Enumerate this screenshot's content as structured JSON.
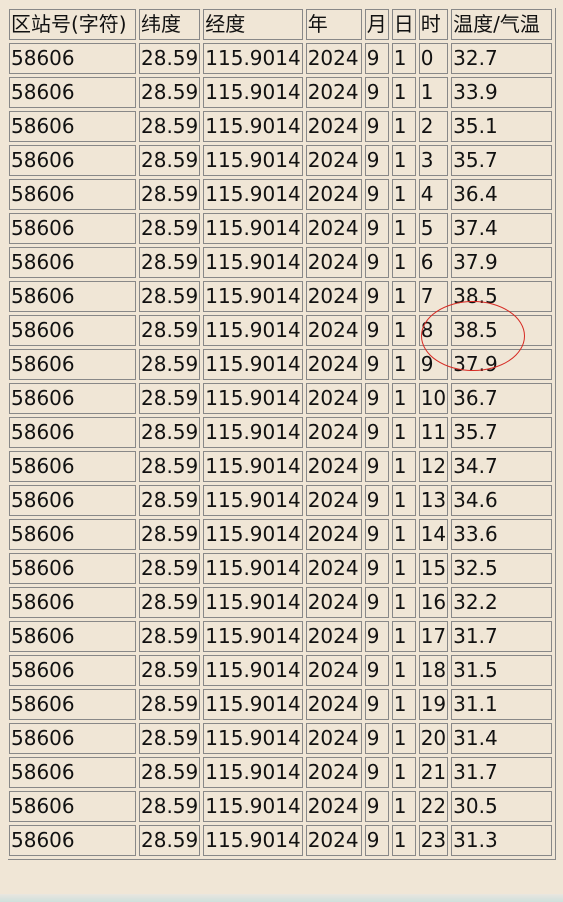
{
  "columns": [
    "区站号(字符)",
    "纬度",
    "经度",
    "年",
    "月",
    "日",
    "时",
    "温度/气温"
  ],
  "rows": [
    [
      "58606",
      "28.59",
      "115.9014",
      "2024",
      "9",
      "1",
      "0",
      "32.7"
    ],
    [
      "58606",
      "28.59",
      "115.9014",
      "2024",
      "9",
      "1",
      "1",
      "33.9"
    ],
    [
      "58606",
      "28.59",
      "115.9014",
      "2024",
      "9",
      "1",
      "2",
      "35.1"
    ],
    [
      "58606",
      "28.59",
      "115.9014",
      "2024",
      "9",
      "1",
      "3",
      "35.7"
    ],
    [
      "58606",
      "28.59",
      "115.9014",
      "2024",
      "9",
      "1",
      "4",
      "36.4"
    ],
    [
      "58606",
      "28.59",
      "115.9014",
      "2024",
      "9",
      "1",
      "5",
      "37.4"
    ],
    [
      "58606",
      "28.59",
      "115.9014",
      "2024",
      "9",
      "1",
      "6",
      "37.9"
    ],
    [
      "58606",
      "28.59",
      "115.9014",
      "2024",
      "9",
      "1",
      "7",
      "38.5"
    ],
    [
      "58606",
      "28.59",
      "115.9014",
      "2024",
      "9",
      "1",
      "8",
      "38.5"
    ],
    [
      "58606",
      "28.59",
      "115.9014",
      "2024",
      "9",
      "1",
      "9",
      "37.9"
    ],
    [
      "58606",
      "28.59",
      "115.9014",
      "2024",
      "9",
      "1",
      "10",
      "36.7"
    ],
    [
      "58606",
      "28.59",
      "115.9014",
      "2024",
      "9",
      "1",
      "11",
      "35.7"
    ],
    [
      "58606",
      "28.59",
      "115.9014",
      "2024",
      "9",
      "1",
      "12",
      "34.7"
    ],
    [
      "58606",
      "28.59",
      "115.9014",
      "2024",
      "9",
      "1",
      "13",
      "34.6"
    ],
    [
      "58606",
      "28.59",
      "115.9014",
      "2024",
      "9",
      "1",
      "14",
      "33.6"
    ],
    [
      "58606",
      "28.59",
      "115.9014",
      "2024",
      "9",
      "1",
      "15",
      "32.5"
    ],
    [
      "58606",
      "28.59",
      "115.9014",
      "2024",
      "9",
      "1",
      "16",
      "32.2"
    ],
    [
      "58606",
      "28.59",
      "115.9014",
      "2024",
      "9",
      "1",
      "17",
      "31.7"
    ],
    [
      "58606",
      "28.59",
      "115.9014",
      "2024",
      "9",
      "1",
      "18",
      "31.5"
    ],
    [
      "58606",
      "28.59",
      "115.9014",
      "2024",
      "9",
      "1",
      "19",
      "31.1"
    ],
    [
      "58606",
      "28.59",
      "115.9014",
      "2024",
      "9",
      "1",
      "20",
      "31.4"
    ],
    [
      "58606",
      "28.59",
      "115.9014",
      "2024",
      "9",
      "1",
      "21",
      "31.7"
    ],
    [
      "58606",
      "28.59",
      "115.9014",
      "2024",
      "9",
      "1",
      "22",
      "30.5"
    ],
    [
      "58606",
      "28.59",
      "115.9014",
      "2024",
      "9",
      "1",
      "23",
      "31.3"
    ]
  ],
  "highlight": {
    "hours": [
      "7",
      "8"
    ],
    "color": "#d62a23"
  },
  "colors": {
    "background": "#f0e6d6",
    "border": "#888888"
  }
}
